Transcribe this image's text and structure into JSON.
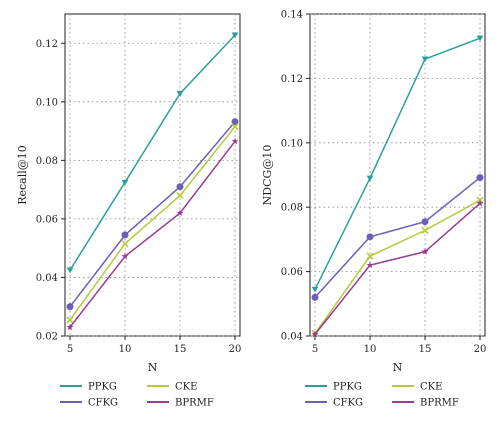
{
  "chart_data": [
    {
      "type": "line",
      "xlabel": "N",
      "ylabel": "Recall@10",
      "x": [
        5,
        10,
        15,
        20
      ],
      "xlim": [
        5,
        20
      ],
      "ylim": [
        0.02,
        0.13
      ],
      "yticks": [
        0.02,
        0.04,
        0.06,
        0.08,
        0.1,
        0.12
      ],
      "ytick_labels": [
        "0.02",
        "0.04",
        "0.06",
        "0.08",
        "0.10",
        "0.12"
      ],
      "xtick_labels": [
        "5",
        "10",
        "15",
        "20"
      ],
      "grid": true,
      "series": [
        {
          "name": "PPKG",
          "color": "#2aa198",
          "marker": "triangle-down",
          "values": [
            0.0425,
            0.0725,
            0.1028,
            0.1228
          ]
        },
        {
          "name": "CFKG",
          "color": "#6c5fb8",
          "marker": "circle",
          "values": [
            0.03,
            0.0545,
            0.071,
            0.0932
          ]
        },
        {
          "name": "CKE",
          "color": "#b9c93a",
          "marker": "x",
          "values": [
            0.0255,
            0.0515,
            0.068,
            0.0915
          ]
        },
        {
          "name": "BPRMF",
          "color": "#9b3a93",
          "marker": "star",
          "values": [
            0.023,
            0.0472,
            0.062,
            0.0865
          ]
        }
      ]
    },
    {
      "type": "line",
      "xlabel": "N",
      "ylabel": "NDCG@10",
      "x": [
        5,
        10,
        15,
        20
      ],
      "xlim": [
        5,
        20
      ],
      "ylim": [
        0.04,
        0.14
      ],
      "yticks": [
        0.04,
        0.06,
        0.08,
        0.1,
        0.12,
        0.14
      ],
      "ytick_labels": [
        "0.04",
        "0.06",
        "0.08",
        "0.10",
        "0.12",
        "0.14"
      ],
      "xtick_labels": [
        "5",
        "10",
        "15",
        "20"
      ],
      "grid": true,
      "series": [
        {
          "name": "PPKG",
          "color": "#2aa198",
          "marker": "triangle-down",
          "values": [
            0.0545,
            0.089,
            0.126,
            0.1325
          ]
        },
        {
          "name": "CFKG",
          "color": "#6c5fb8",
          "marker": "circle",
          "values": [
            0.052,
            0.0708,
            0.0755,
            0.0892
          ]
        },
        {
          "name": "CKE",
          "color": "#b9c93a",
          "marker": "x",
          "values": [
            0.0408,
            0.0648,
            0.0728,
            0.0822
          ]
        },
        {
          "name": "BPRMF",
          "color": "#9b3a93",
          "marker": "star",
          "values": [
            0.0405,
            0.062,
            0.0662,
            0.0812
          ]
        }
      ]
    }
  ],
  "legends": [
    {
      "entries": [
        "PPKG",
        "CKE",
        "CFKG",
        "BPRMF"
      ]
    },
    {
      "entries": [
        "PPKG",
        "CKE",
        "CFKG",
        "BPRMF"
      ]
    }
  ]
}
